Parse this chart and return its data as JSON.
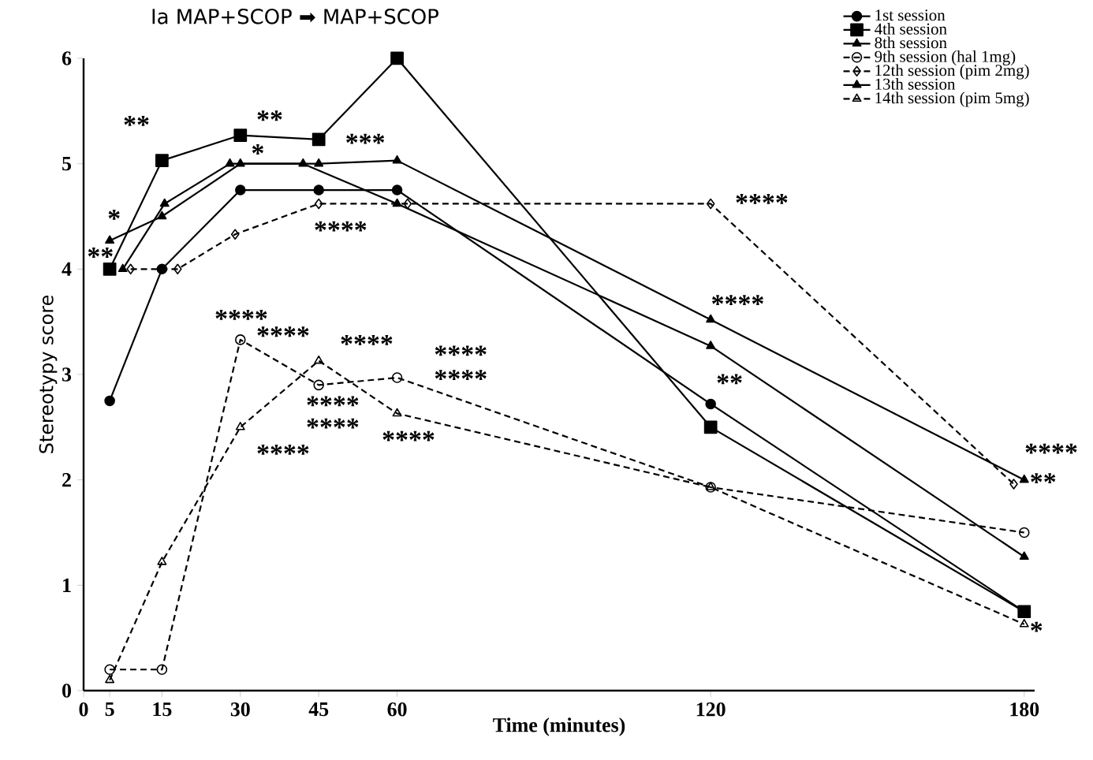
{
  "chart_data": {
    "type": "line",
    "title": "Ia MAP+SCOP ➡ MAP+SCOP",
    "xlabel": "Time (minutes)",
    "ylabel": "Stereotypy score",
    "x": [
      5,
      15,
      30,
      45,
      60,
      120,
      180
    ],
    "xlim": [
      0,
      182
    ],
    "xticks": [
      0,
      5,
      15,
      30,
      45,
      60,
      120,
      180
    ],
    "ylim": [
      0,
      6
    ],
    "yticks": [
      0,
      1,
      2,
      3,
      4,
      5,
      6
    ],
    "grid": false,
    "legend": "top right",
    "series": [
      {
        "name": "1st session",
        "color": "#000000",
        "marker": "circle",
        "line_style": "solid",
        "values": [
          2.75,
          4.0,
          4.75,
          4.75,
          4.75,
          2.72,
          0.75
        ]
      },
      {
        "name": "4th session",
        "color": "#000000",
        "marker": "square",
        "line_style": "solid",
        "values": [
          4.0,
          5.03,
          5.27,
          5.23,
          6.0,
          2.5,
          0.75
        ]
      },
      {
        "name": "8th session",
        "color": "#000000",
        "marker": "triangle",
        "line_style": "solid",
        "values": [
          4.27,
          4.5,
          5.0,
          5.0,
          5.03,
          3.52,
          2.0
        ]
      },
      {
        "name": "9th session (hal 1mg)",
        "color": "#000000",
        "marker": "circle",
        "line_style": "dashed",
        "values": [
          0.2,
          0.2,
          3.33,
          2.9,
          2.97,
          1.93,
          1.5
        ]
      },
      {
        "name": "12th session (pim 2mg)",
        "x": [
          9,
          18,
          29,
          45,
          62,
          120,
          178
        ],
        "color": "#000000",
        "marker": "diamond",
        "line_style": "dashed",
        "values": [
          4.0,
          4.0,
          4.33,
          4.62,
          4.62,
          4.62,
          1.96
        ]
      },
      {
        "name": "13th session",
        "x": [
          7.5,
          15.5,
          28,
          42,
          60,
          120,
          180
        ],
        "color": "#000000",
        "marker": "triangle",
        "line_style": "solid",
        "values": [
          4.0,
          4.62,
          5.0,
          5.0,
          4.62,
          3.27,
          1.27
        ]
      },
      {
        "name": "14th session (pim 5mg)",
        "color": "#000000",
        "marker": "triangle",
        "line_style": "dashed",
        "values": [
          0.1,
          1.22,
          2.5,
          3.13,
          2.63,
          1.93,
          0.63
        ]
      }
    ],
    "annotations": [
      "**",
      "**",
      "*",
      "***",
      "****",
      "*",
      "**",
      "****",
      "****",
      "****",
      "****",
      "****",
      "****",
      "****",
      "****",
      "****",
      "****",
      "****",
      "**",
      "****",
      "**",
      "*"
    ]
  }
}
